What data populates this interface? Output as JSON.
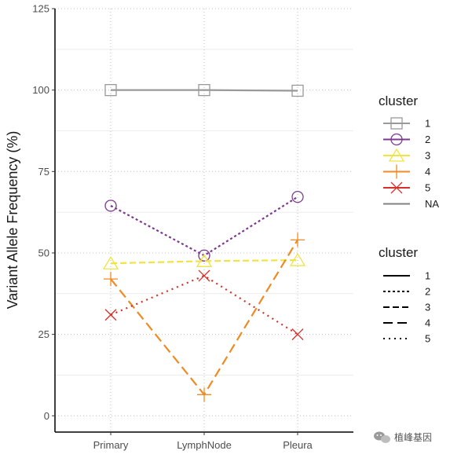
{
  "chart_data": {
    "type": "line",
    "ylabel": "Variant Allele Frequency (%)",
    "xlabel": "",
    "categories": [
      "Primary",
      "LymphNode",
      "Pleura"
    ],
    "ylim": [
      -5,
      125
    ],
    "yticks": [
      0,
      25,
      50,
      75,
      100,
      125
    ],
    "grid": true,
    "legend_position": "right",
    "series": [
      {
        "name": "1",
        "values": [
          100,
          100,
          99.8
        ],
        "color": "#999999",
        "marker": "square",
        "linetype": "solid"
      },
      {
        "name": "2",
        "values": [
          64.5,
          49.2,
          67.2
        ],
        "color": "#7B3A8E",
        "marker": "circle",
        "linetype": "dotted"
      },
      {
        "name": "3",
        "values": [
          46.8,
          47.5,
          47.8
        ],
        "color": "#F0E442",
        "marker": "triangle",
        "linetype": "dashed"
      },
      {
        "name": "4",
        "values": [
          42,
          6.5,
          54
        ],
        "color": "#F08A24",
        "marker": "plus",
        "linetype": "longdash"
      },
      {
        "name": "5",
        "values": [
          31,
          43,
          25
        ],
        "color": "#D7302A",
        "marker": "cross",
        "linetype": "dotted-sparse"
      }
    ],
    "legend_color": {
      "title": "cluster",
      "items": [
        {
          "label": "1",
          "color": "#999999",
          "marker": "square"
        },
        {
          "label": "2",
          "color": "#7B3A8E",
          "marker": "circle"
        },
        {
          "label": "3",
          "color": "#F0E442",
          "marker": "triangle"
        },
        {
          "label": "4",
          "color": "#F08A24",
          "marker": "plus"
        },
        {
          "label": "5",
          "color": "#D7302A",
          "marker": "cross"
        },
        {
          "label": "NA",
          "color": "#808080",
          "marker": "none"
        }
      ]
    },
    "legend_linetype": {
      "title": "cluster",
      "items": [
        {
          "label": "1",
          "linetype": "solid"
        },
        {
          "label": "2",
          "linetype": "dotted"
        },
        {
          "label": "3",
          "linetype": "dashed"
        },
        {
          "label": "4",
          "linetype": "longdash"
        },
        {
          "label": "5",
          "linetype": "dotted-sparse"
        }
      ]
    }
  },
  "watermark": {
    "text": "植峰基因",
    "icon": "wechat-icon"
  }
}
